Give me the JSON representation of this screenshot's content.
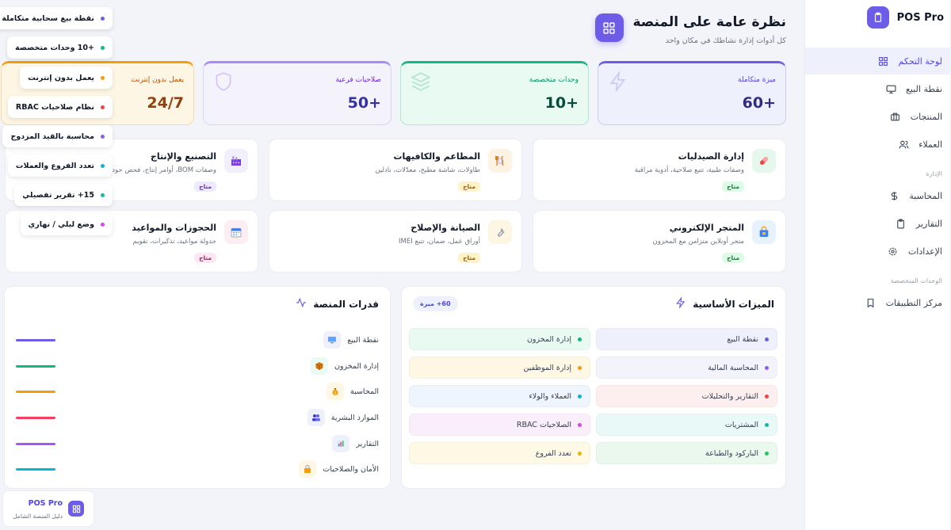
{
  "brand": {
    "name": "POS Pro"
  },
  "sidebar": {
    "items": [
      {
        "label": "لوحة التحكم"
      },
      {
        "label": "نقطة البيع"
      },
      {
        "label": "المنتجات"
      },
      {
        "label": "العملاء"
      }
    ],
    "section_admin": "الإدارة",
    "admin_items": [
      {
        "label": "المحاسبة"
      },
      {
        "label": "التقارير"
      },
      {
        "label": "الإعدادات"
      }
    ],
    "section_modules": "الوحدات المتخصصة",
    "module_items": [
      {
        "label": "مركز التطبيقات"
      }
    ]
  },
  "header": {
    "title": "نظرة عامة على المنصة",
    "subtitle": "كل أدوات إدارة نشاطك في مكان واحد"
  },
  "stats": [
    {
      "label": "ميزة متكاملة",
      "value": "+60"
    },
    {
      "label": "وحدات متخصصة",
      "value": "+10"
    },
    {
      "label": "صلاحيات فرعية",
      "value": "+50"
    },
    {
      "label": "يعمل بدون إنترنت",
      "value": "24/7"
    }
  ],
  "modules": [
    {
      "title": "إدارة الصيدليات",
      "desc": "وصفات طبية، تتبع صلاحية، أدوية مراقبة",
      "badge": "متاح"
    },
    {
      "title": "المطاعم والكافيهات",
      "desc": "طاولات، شاشة مطبخ، معدّلات، نادلين",
      "badge": "متاح"
    },
    {
      "title": "التصنيع والإنتاج",
      "desc": "وصفات BOM، أوامر إنتاج، فحص جودة",
      "badge": "متاح"
    },
    {
      "title": "المتجر الإلكتروني",
      "desc": "متجر أونلاين متزامن مع المخزون",
      "badge": "متاح"
    },
    {
      "title": "الصيانة والإصلاح",
      "desc": "أوراق عمل، ضمان، تتبع IMEI",
      "badge": "متاح"
    },
    {
      "title": "الحجوزات والمواعيد",
      "desc": "جدولة مواعيد، تذكيرات، تقويم",
      "badge": "متاح"
    }
  ],
  "features": {
    "title": "الميزات الأساسية",
    "badge": "60+ ميزة",
    "items": [
      {
        "label": "نقطة البيع"
      },
      {
        "label": "إدارة المخزون"
      },
      {
        "label": "المحاسبة المالية"
      },
      {
        "label": "إدارة الموظفين"
      },
      {
        "label": "التقارير والتحليلات"
      },
      {
        "label": "العملاء والولاء"
      },
      {
        "label": "المشتريات"
      },
      {
        "label": "الصلاحيات RBAC"
      },
      {
        "label": "الباركود والطباعة"
      },
      {
        "label": "تعدد الفروع"
      }
    ]
  },
  "capabilities": {
    "title": "قدرات المنصة",
    "items": [
      {
        "label": "نقطة البيع"
      },
      {
        "label": "إدارة المخزون"
      },
      {
        "label": "المحاسبة"
      },
      {
        "label": "الموارد البشرية"
      },
      {
        "label": "التقارير"
      },
      {
        "label": "الأمان والصلاحيات"
      }
    ]
  },
  "floating_tags": [
    {
      "label": "نقطة بيع سحابية متكاملة"
    },
    {
      "label": "+10 وحدات متخصصة"
    },
    {
      "label": "يعمل بدون إنترنت"
    },
    {
      "label": "نظام صلاحيات RBAC"
    },
    {
      "label": "محاسبة بالقيد المزدوج"
    },
    {
      "label": "تعدد الفروع والعملات"
    },
    {
      "label": "15+ تقرير تفصيلي"
    },
    {
      "label": "وضع ليلي / نهاري"
    }
  ],
  "guide": {
    "title": "POS Pro",
    "subtitle": "دليل المنصة الشامل"
  },
  "colors": {
    "accent": "#6d5ce7",
    "green": "#10b981",
    "orange": "#f59e0b",
    "red": "#ef4444",
    "cyan": "#06b6d4",
    "purple": "#a855f7",
    "amber_text": "#b45309"
  }
}
